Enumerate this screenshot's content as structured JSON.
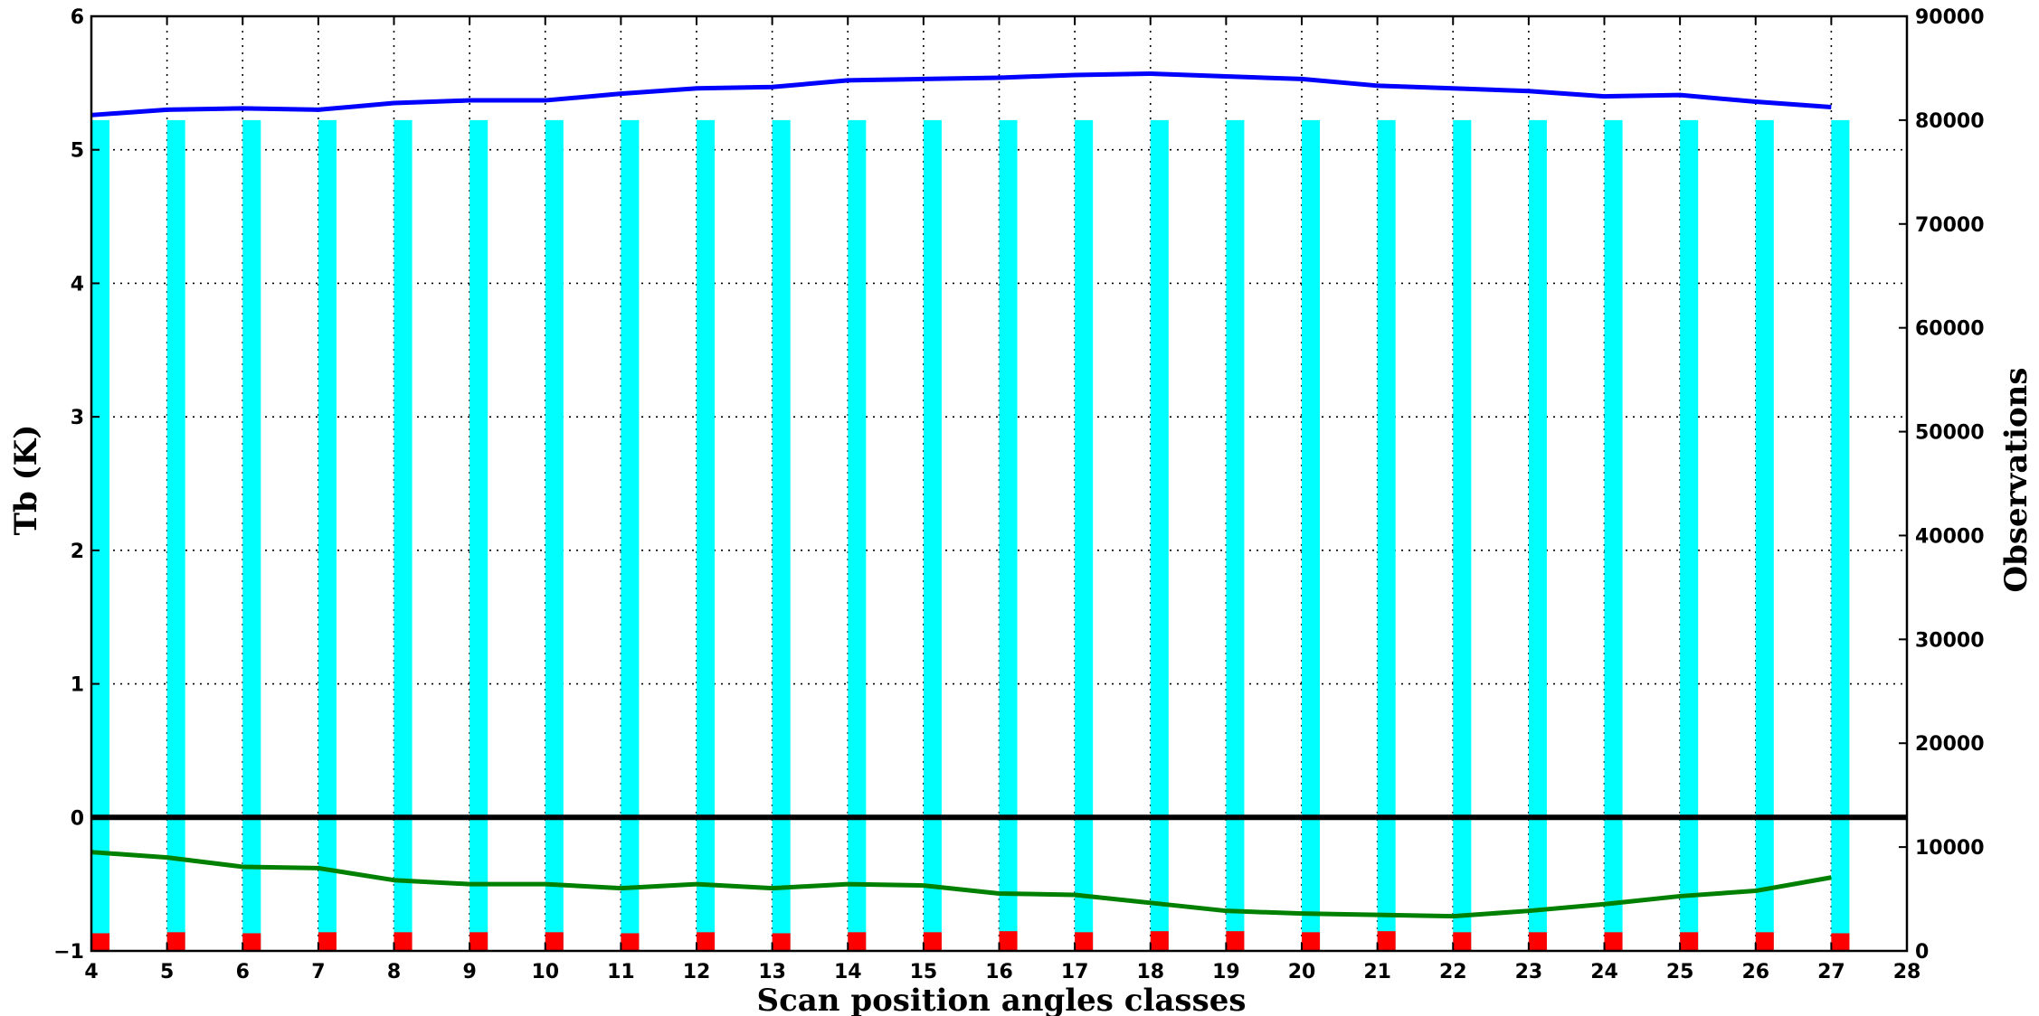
{
  "chart_data": {
    "type": "bar",
    "title": "",
    "xlabel": "Scan position angles classes",
    "ylabel": "Tb (K)",
    "y2label": "Observations",
    "xlim": [
      4,
      28
    ],
    "ylim": [
      -1,
      6
    ],
    "y2lim": [
      0,
      90000
    ],
    "grid": true,
    "x_ticks": [
      4,
      5,
      6,
      7,
      8,
      9,
      10,
      11,
      12,
      13,
      14,
      15,
      16,
      17,
      18,
      19,
      20,
      21,
      22,
      23,
      24,
      25,
      26,
      27,
      28
    ],
    "y_ticks": [
      -1,
      0,
      1,
      2,
      3,
      4,
      5,
      6
    ],
    "y2_ticks": [
      0,
      10000,
      20000,
      30000,
      40000,
      50000,
      60000,
      70000,
      80000,
      90000
    ],
    "categories": [
      4,
      5,
      6,
      7,
      8,
      9,
      10,
      11,
      12,
      13,
      14,
      15,
      16,
      17,
      18,
      19,
      20,
      21,
      22,
      23,
      24,
      25,
      26,
      27
    ],
    "series": [
      {
        "axis": "right",
        "kind": "bar",
        "color": "#00ffff",
        "values": [
          80000,
          80000,
          80000,
          80000,
          80000,
          80000,
          80000,
          80000,
          80000,
          80000,
          80000,
          80000,
          80000,
          80000,
          80000,
          80000,
          80000,
          80000,
          80000,
          80000,
          80000,
          80000,
          80000,
          80000
        ]
      },
      {
        "axis": "right",
        "kind": "bar",
        "color": "#ff0000",
        "values": [
          1700,
          1800,
          1700,
          1800,
          1800,
          1800,
          1800,
          1700,
          1800,
          1700,
          1800,
          1800,
          1900,
          1800,
          1900,
          1900,
          1800,
          1900,
          1800,
          1800,
          1800,
          1800,
          1800,
          1700
        ]
      },
      {
        "axis": "left",
        "kind": "line",
        "color": "#0000ff",
        "values": [
          5.26,
          5.3,
          5.31,
          5.3,
          5.35,
          5.37,
          5.37,
          5.42,
          5.46,
          5.47,
          5.52,
          5.53,
          5.54,
          5.56,
          5.57,
          5.55,
          5.53,
          5.48,
          5.46,
          5.44,
          5.4,
          5.41,
          5.36,
          5.32
        ]
      },
      {
        "axis": "left",
        "kind": "line",
        "color": "#008000",
        "values": [
          -0.26,
          -0.3,
          -0.37,
          -0.38,
          -0.47,
          -0.5,
          -0.5,
          -0.53,
          -0.5,
          -0.53,
          -0.5,
          -0.51,
          -0.57,
          -0.58,
          -0.64,
          -0.7,
          -0.72,
          -0.73,
          -0.74,
          -0.7,
          -0.65,
          -0.59,
          -0.55,
          -0.45
        ]
      }
    ],
    "zero_line_color": "#000000"
  }
}
